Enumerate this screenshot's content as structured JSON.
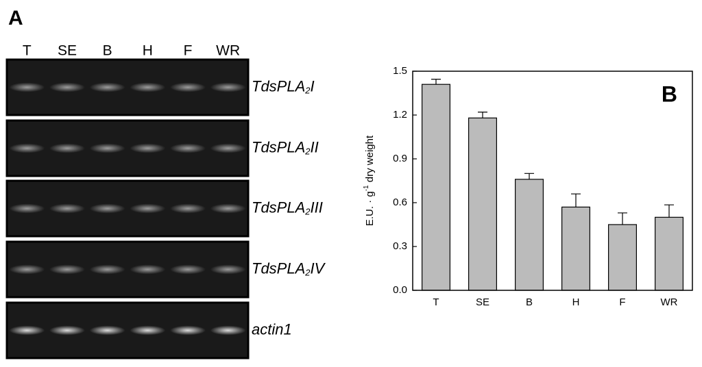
{
  "panel_a": {
    "label": "A",
    "lanes": [
      "T",
      "SE",
      "B",
      "H",
      "F",
      "WR"
    ],
    "genes": [
      {
        "name": "TdsPLA",
        "subscript": "2",
        "suffix": "I"
      },
      {
        "name": "TdsPLA",
        "subscript": "2",
        "suffix": "II"
      },
      {
        "name": "TdsPLA",
        "subscript": "2",
        "suffix": "III"
      },
      {
        "name": "TdsPLA",
        "subscript": "2",
        "suffix": "IV"
      },
      {
        "name": "actin1"
      }
    ]
  },
  "chart_data": {
    "type": "bar",
    "panel_label": "B",
    "ylabel": {
      "text": "E.U. · g",
      "sup": "-1",
      "rest": " dry weight"
    },
    "categories": [
      "T",
      "SE",
      "B",
      "H",
      "F",
      "WR"
    ],
    "values": [
      1.41,
      1.18,
      0.76,
      0.57,
      0.45,
      0.5
    ],
    "errors": [
      0.035,
      0.04,
      0.04,
      0.09,
      0.08,
      0.085
    ],
    "color": "#bbbbbb",
    "ylim": [
      0,
      1.5
    ],
    "yticks": [
      {
        "value": 0,
        "label": "0.0"
      },
      0.3,
      0.6,
      0.9,
      1.2,
      1.5
    ]
  }
}
